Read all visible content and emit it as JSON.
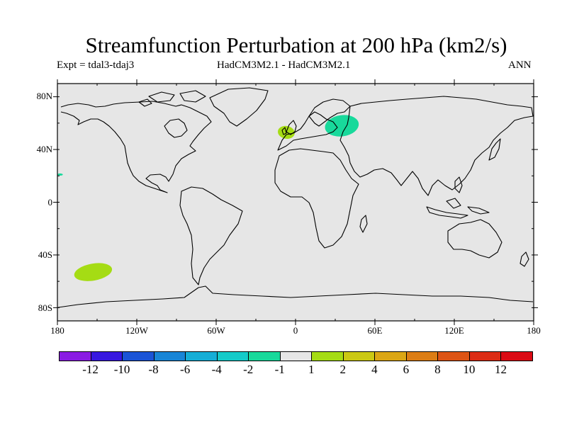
{
  "title": "Streamfunction Perturbation at 200 hPa (km2/s)",
  "left_label": "Expt = tdal3-tdaj3",
  "center_label": "HadCM3M2.1 - HadCM3M2.1",
  "right_label": "ANN",
  "lat_ticks": [
    "80N",
    "40N",
    "0",
    "40S",
    "80S"
  ],
  "lon_ticks": [
    "180",
    "120W",
    "60W",
    "0",
    "60E",
    "120E",
    "180"
  ],
  "colorbar": {
    "labels": [
      "-12",
      "-10",
      "-8",
      "-6",
      "-4",
      "-2",
      "-1",
      "1",
      "2",
      "4",
      "6",
      "8",
      "10",
      "12"
    ],
    "colors": [
      "#8a1ce3",
      "#3818e0",
      "#1b54d6",
      "#1885d6",
      "#15aed6",
      "#14cbc9",
      "#18d99b",
      "#e6e6e6",
      "#a5dc14",
      "#cbc813",
      "#dba614",
      "#dc7d14",
      "#dd5414",
      "#dc2c14",
      "#db0a14"
    ]
  },
  "chart_data": {
    "type": "map",
    "projection": "cylindrical-equidistant",
    "lon_range": [
      -180,
      180
    ],
    "lat_range": [
      -90,
      90
    ],
    "missing_color": "#e6e6e6",
    "anomalies": [
      {
        "name": "Scandinavia / NW Russia",
        "center_lon": 35,
        "center_lat": 58,
        "range": "-2 to -1",
        "color": "#18d99b"
      },
      {
        "name": "Western Europe / North Sea",
        "center_lon": -7,
        "center_lat": 53,
        "range": "1 to 2",
        "color": "#a5dc14"
      },
      {
        "name": "South Pacific",
        "center_lon": -153,
        "center_lat": -53,
        "range": "1 to 2",
        "color": "#a5dc14"
      },
      {
        "name": "Central Pacific (dateline)",
        "center_lon": -178,
        "center_lat": 21,
        "range": "-2 to -1",
        "color": "#18d99b"
      }
    ]
  }
}
